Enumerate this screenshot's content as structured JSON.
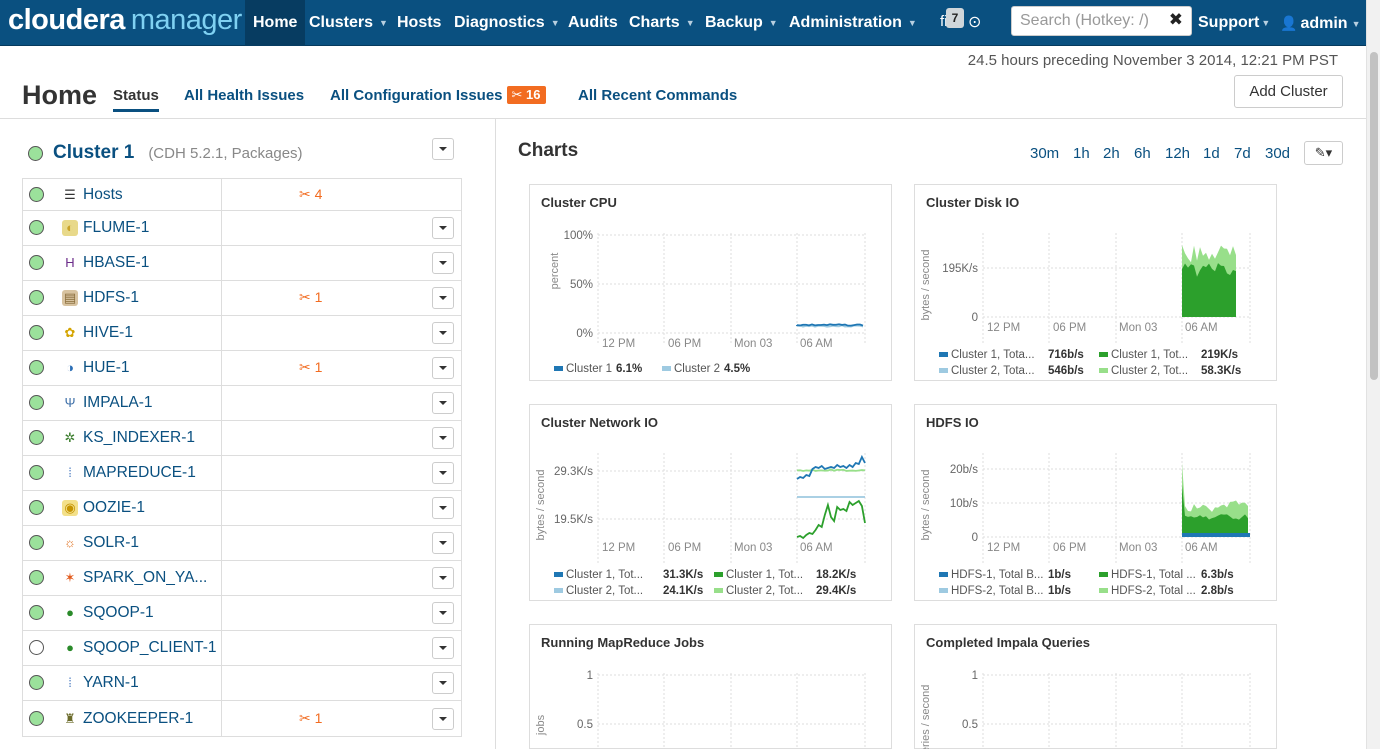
{
  "nav": {
    "logo_main": "cloudera",
    "logo_sub": "manager",
    "items": [
      {
        "label": "Home",
        "caret": false
      },
      {
        "label": "Clusters",
        "caret": true
      },
      {
        "label": "Hosts",
        "caret": false
      },
      {
        "label": "Diagnostics",
        "caret": true
      },
      {
        "label": "Audits",
        "caret": false
      },
      {
        "label": "Charts",
        "caret": true
      },
      {
        "label": "Backup",
        "caret": true
      },
      {
        "label": "Administration",
        "caret": true
      }
    ],
    "messages_count": "7",
    "search_placeholder": "Search (Hotkey: /)",
    "support_label": "Support",
    "user_label": "admin"
  },
  "header": {
    "timestamp": "24.5 hours preceding November 3 2014, 12:21 PM PST",
    "title": "Home",
    "tabs": [
      "Status",
      "All Health Issues",
      "All Configuration Issues",
      "All Recent Commands"
    ],
    "config_issue_count": "16",
    "add_cluster_label": "Add Cluster"
  },
  "cluster": {
    "name": "Cluster 1",
    "meta": "(CDH 5.2.1, Packages)",
    "services": [
      {
        "name": "Hosts",
        "icon": "list-icon",
        "alert": "4",
        "health": "good",
        "menu": false
      },
      {
        "name": "FLUME-1",
        "icon": "flume-icon",
        "alert": "",
        "health": "good",
        "menu": true
      },
      {
        "name": "HBASE-1",
        "icon": "hbase-icon",
        "alert": "",
        "health": "good",
        "menu": true
      },
      {
        "name": "HDFS-1",
        "icon": "hdfs-icon",
        "alert": "1",
        "health": "good",
        "menu": true
      },
      {
        "name": "HIVE-1",
        "icon": "hive-icon",
        "alert": "",
        "health": "good",
        "menu": true
      },
      {
        "name": "HUE-1",
        "icon": "hue-icon",
        "alert": "1",
        "health": "good",
        "menu": true
      },
      {
        "name": "IMPALA-1",
        "icon": "impala-icon",
        "alert": "",
        "health": "good",
        "menu": true
      },
      {
        "name": "KS_INDEXER-1",
        "icon": "ks-indexer-icon",
        "alert": "",
        "health": "good",
        "menu": true
      },
      {
        "name": "MAPREDUCE-1",
        "icon": "mapreduce-icon",
        "alert": "",
        "health": "good",
        "menu": true
      },
      {
        "name": "OOZIE-1",
        "icon": "oozie-icon",
        "alert": "",
        "health": "good",
        "menu": true
      },
      {
        "name": "SOLR-1",
        "icon": "solr-icon",
        "alert": "",
        "health": "good",
        "menu": true
      },
      {
        "name": "SPARK_ON_YA...",
        "icon": "spark-icon",
        "alert": "",
        "health": "good",
        "menu": true
      },
      {
        "name": "SQOOP-1",
        "icon": "sqoop-icon",
        "alert": "",
        "health": "good",
        "menu": true
      },
      {
        "name": "SQOOP_CLIENT-1",
        "icon": "sqoop-icon",
        "alert": "",
        "health": "none",
        "menu": true
      },
      {
        "name": "YARN-1",
        "icon": "yarn-icon",
        "alert": "",
        "health": "good",
        "menu": true
      },
      {
        "name": "ZOOKEEPER-1",
        "icon": "zookeeper-icon",
        "alert": "1",
        "health": "good",
        "menu": true
      }
    ]
  },
  "charts_panel": {
    "title": "Charts",
    "ranges": [
      "30m",
      "1h",
      "2h",
      "6h",
      "12h",
      "1d",
      "7d",
      "30d"
    ],
    "x_ticks": [
      "12 PM",
      "06 PM",
      "Mon 03",
      "06 AM"
    ]
  },
  "chart_data": [
    {
      "type": "line",
      "title": "Cluster CPU",
      "ylabel": "percent",
      "yticks": [
        "100%",
        "50%",
        "0%"
      ],
      "ylim": [
        0,
        100
      ],
      "series": [
        {
          "name": "Cluster 1",
          "last": "6.1%",
          "color": "#1f77b4"
        },
        {
          "name": "Cluster 2",
          "last": "4.5%",
          "color": "#9ecae1"
        }
      ]
    },
    {
      "type": "area",
      "title": "Cluster Disk IO",
      "ylabel": "bytes / second",
      "yticks": [
        "195K/s",
        "0"
      ],
      "series": [
        {
          "name": "Cluster 1, Tota...",
          "last": "716b/s",
          "color": "#1f77b4"
        },
        {
          "name": "Cluster 1, Tot...",
          "last": "219K/s",
          "color": "#2ca02c"
        },
        {
          "name": "Cluster 2, Tota...",
          "last": "546b/s",
          "color": "#9ecae1"
        },
        {
          "name": "Cluster 2, Tot...",
          "last": "58.3K/s",
          "color": "#98df8a"
        }
      ]
    },
    {
      "type": "line",
      "title": "Cluster Network IO",
      "ylabel": "bytes / second",
      "yticks": [
        "29.3K/s",
        "19.5K/s"
      ],
      "series": [
        {
          "name": "Cluster 1, Tot...",
          "last": "31.3K/s",
          "color": "#1f77b4"
        },
        {
          "name": "Cluster 1, Tot...",
          "last": "18.2K/s",
          "color": "#2ca02c"
        },
        {
          "name": "Cluster 2, Tot...",
          "last": "24.1K/s",
          "color": "#9ecae1"
        },
        {
          "name": "Cluster 2, Tot...",
          "last": "29.4K/s",
          "color": "#98df8a"
        }
      ]
    },
    {
      "type": "area",
      "title": "HDFS IO",
      "ylabel": "bytes / second",
      "yticks": [
        "20b/s",
        "10b/s",
        "0"
      ],
      "series": [
        {
          "name": "HDFS-1, Total B...",
          "last": "1b/s",
          "color": "#1f77b4"
        },
        {
          "name": "HDFS-1, Total ...",
          "last": "6.3b/s",
          "color": "#2ca02c"
        },
        {
          "name": "HDFS-2, Total B...",
          "last": "1b/s",
          "color": "#9ecae1"
        },
        {
          "name": "HDFS-2, Total ...",
          "last": "2.8b/s",
          "color": "#98df8a"
        }
      ]
    },
    {
      "type": "line",
      "title": "Running MapReduce Jobs",
      "ylabel": "jobs",
      "yticks": [
        "1",
        "0.5"
      ],
      "series": []
    },
    {
      "type": "line",
      "title": "Completed Impala Queries",
      "ylabel": "queries / second",
      "yticks": [
        "1",
        "0.5"
      ],
      "series": []
    }
  ],
  "colors": {
    "navbar": "#0a5080",
    "link": "#0a5080",
    "alert": "#f26c21",
    "healthy": "#9be19b"
  }
}
